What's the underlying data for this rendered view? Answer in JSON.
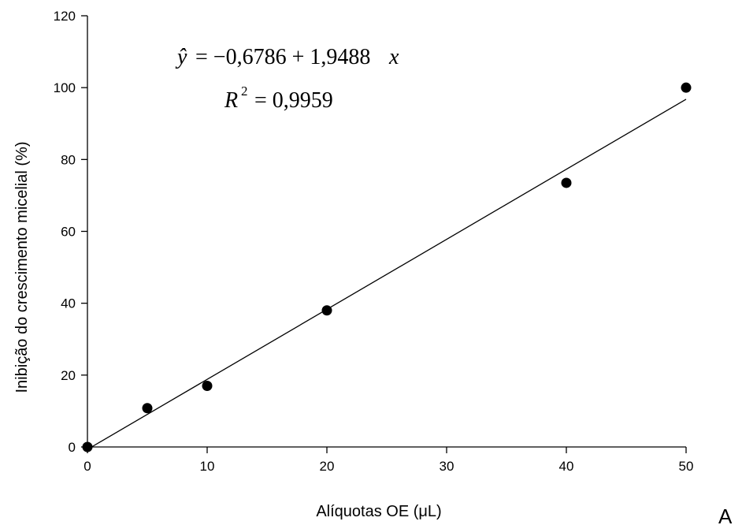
{
  "chart_data": {
    "type": "scatter",
    "xlabel": "Alíquotas OE (μL)",
    "ylabel": "Inibição do crescimento micelial (%)",
    "xlim": [
      0,
      50
    ],
    "ylim": [
      0,
      120
    ],
    "xticks": [
      0,
      10,
      20,
      30,
      40,
      50
    ],
    "yticks": [
      0,
      20,
      40,
      60,
      80,
      100,
      120
    ],
    "grid": false,
    "series": [
      {
        "x": [
          0,
          5,
          10,
          20,
          40,
          50
        ],
        "y": [
          0,
          10.8,
          17,
          38,
          73.5,
          100
        ]
      }
    ],
    "fit": {
      "type": "linear",
      "intercept": -0.6786,
      "slope": 1.9488,
      "x_range": [
        0,
        50
      ]
    },
    "annotations": {
      "equation_lhs": "ŷ",
      "equation_rhs": "= −0,6786 + 1,9488",
      "equation_var": "x",
      "r2_symbol": "R",
      "r2_sup": "2",
      "r2_value": "= 0,9959"
    },
    "panel_label": "A"
  }
}
